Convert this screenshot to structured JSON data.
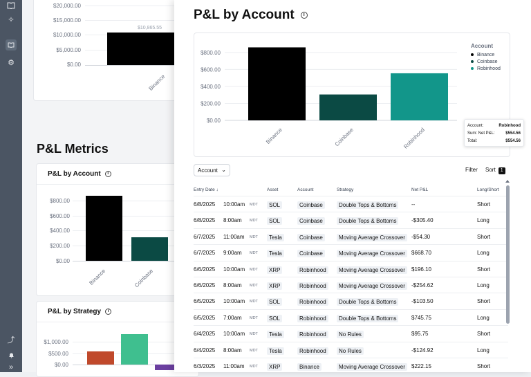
{
  "rail": {
    "icons": [
      "book-icon",
      "sparkle-icon",
      "notebook-icon",
      "gears-icon",
      "chart-icon",
      "bell-icon",
      "expand-icon"
    ]
  },
  "background": {
    "top_chart": {
      "ticks": [
        "$20,000.00",
        "$15,000.00",
        "$10,000.00",
        "$5,000.00",
        "$0.00"
      ],
      "bar_label": "$10,865.55",
      "category": "Binance"
    },
    "section_title": "P&L Metrics",
    "card1": {
      "title": "P&L by Account",
      "ticks": [
        "$800.00",
        "$600.00",
        "$400.00",
        "$200.00",
        "$0.00"
      ],
      "categories": [
        "Binance",
        "Coinbase"
      ]
    },
    "card2": {
      "title": "P&L by Strategy",
      "ticks": [
        "$1,000.00",
        "$500.00",
        "$0.00"
      ]
    }
  },
  "panel": {
    "title": "P&L by Account",
    "legend_title": "Account",
    "tooltip": {
      "account_label": "Account:",
      "account_value": "Robinhood",
      "sum_label": "Sum: Net P&L:",
      "sum_value": "$554.56",
      "total_label": "Total:",
      "total_value": "$554.56"
    },
    "dropdown_label": "Account",
    "filter_label": "Filter",
    "sort_label": "Sort",
    "sort_count": "1",
    "columns": {
      "entry_date": "Entry Date",
      "asset": "Asset",
      "account": "Account",
      "strategy": "Strategy",
      "net_pl": "Net P&L",
      "long_short": "Long/Short"
    },
    "rows": [
      {
        "date": "6/8/2025",
        "time": "10:00am",
        "tz": "MDT",
        "asset": "SOL",
        "account": "Coinbase",
        "strategy": "Double Tops & Bottoms",
        "pl": "--",
        "side": "Short"
      },
      {
        "date": "6/8/2025",
        "time": "8:00am",
        "tz": "MDT",
        "asset": "SOL",
        "account": "Coinbase",
        "strategy": "Double Tops & Bottoms",
        "pl": "-$305.40",
        "side": "Long"
      },
      {
        "date": "6/7/2025",
        "time": "11:00am",
        "tz": "MDT",
        "asset": "Tesla",
        "account": "Coinbase",
        "strategy": "Moving Average Crossover",
        "pl": "-$54.30",
        "side": "Short"
      },
      {
        "date": "6/7/2025",
        "time": "9:00am",
        "tz": "MDT",
        "asset": "Tesla",
        "account": "Coinbase",
        "strategy": "Moving Average Crossover",
        "pl": "$668.70",
        "side": "Long"
      },
      {
        "date": "6/6/2025",
        "time": "10:00am",
        "tz": "MDT",
        "asset": "XRP",
        "account": "Robinhood",
        "strategy": "Moving Average Crossover",
        "pl": "$196.10",
        "side": "Short"
      },
      {
        "date": "6/6/2025",
        "time": "8:00am",
        "tz": "MDT",
        "asset": "XRP",
        "account": "Robinhood",
        "strategy": "Moving Average Crossover",
        "pl": "-$254.62",
        "side": "Long"
      },
      {
        "date": "6/5/2025",
        "time": "10:00am",
        "tz": "MDT",
        "asset": "SOL",
        "account": "Robinhood",
        "strategy": "Double Tops & Bottoms",
        "pl": "-$103.50",
        "side": "Short"
      },
      {
        "date": "6/5/2025",
        "time": "7:00am",
        "tz": "MDT",
        "asset": "SOL",
        "account": "Robinhood",
        "strategy": "Double Tops & Bottoms",
        "pl": "$745.75",
        "side": "Long"
      },
      {
        "date": "6/4/2025",
        "time": "10:00am",
        "tz": "MDT",
        "asset": "Tesla",
        "account": "Robinhood",
        "strategy": "No Rules",
        "pl": "$95.75",
        "side": "Short"
      },
      {
        "date": "6/4/2025",
        "time": "8:00am",
        "tz": "MDT",
        "asset": "Tesla",
        "account": "Robinhood",
        "strategy": "No Rules",
        "pl": "-$124.92",
        "side": "Long"
      },
      {
        "date": "6/3/2025",
        "time": "11:00am",
        "tz": "MDT",
        "asset": "XRP",
        "account": "Binance",
        "strategy": "Moving Average Crossover",
        "pl": "$222.15",
        "side": "Short"
      }
    ]
  },
  "chart_data": [
    {
      "type": "bar",
      "categories": [
        "Binance",
        "Coinbase",
        "Robinhood"
      ],
      "values": [
        860,
        305,
        554.56
      ],
      "colors": [
        "#000000",
        "#0b4a44",
        "#12968a"
      ],
      "legend": [
        "Binance",
        "Coinbase",
        "Robinhood"
      ],
      "legend_title": "Account",
      "legend_position": "top-right",
      "ticks": [
        "$800.00",
        "$600.00",
        "$400.00",
        "$200.00",
        "$0.00"
      ],
      "ylim": [
        0,
        880
      ],
      "grid": true
    }
  ]
}
